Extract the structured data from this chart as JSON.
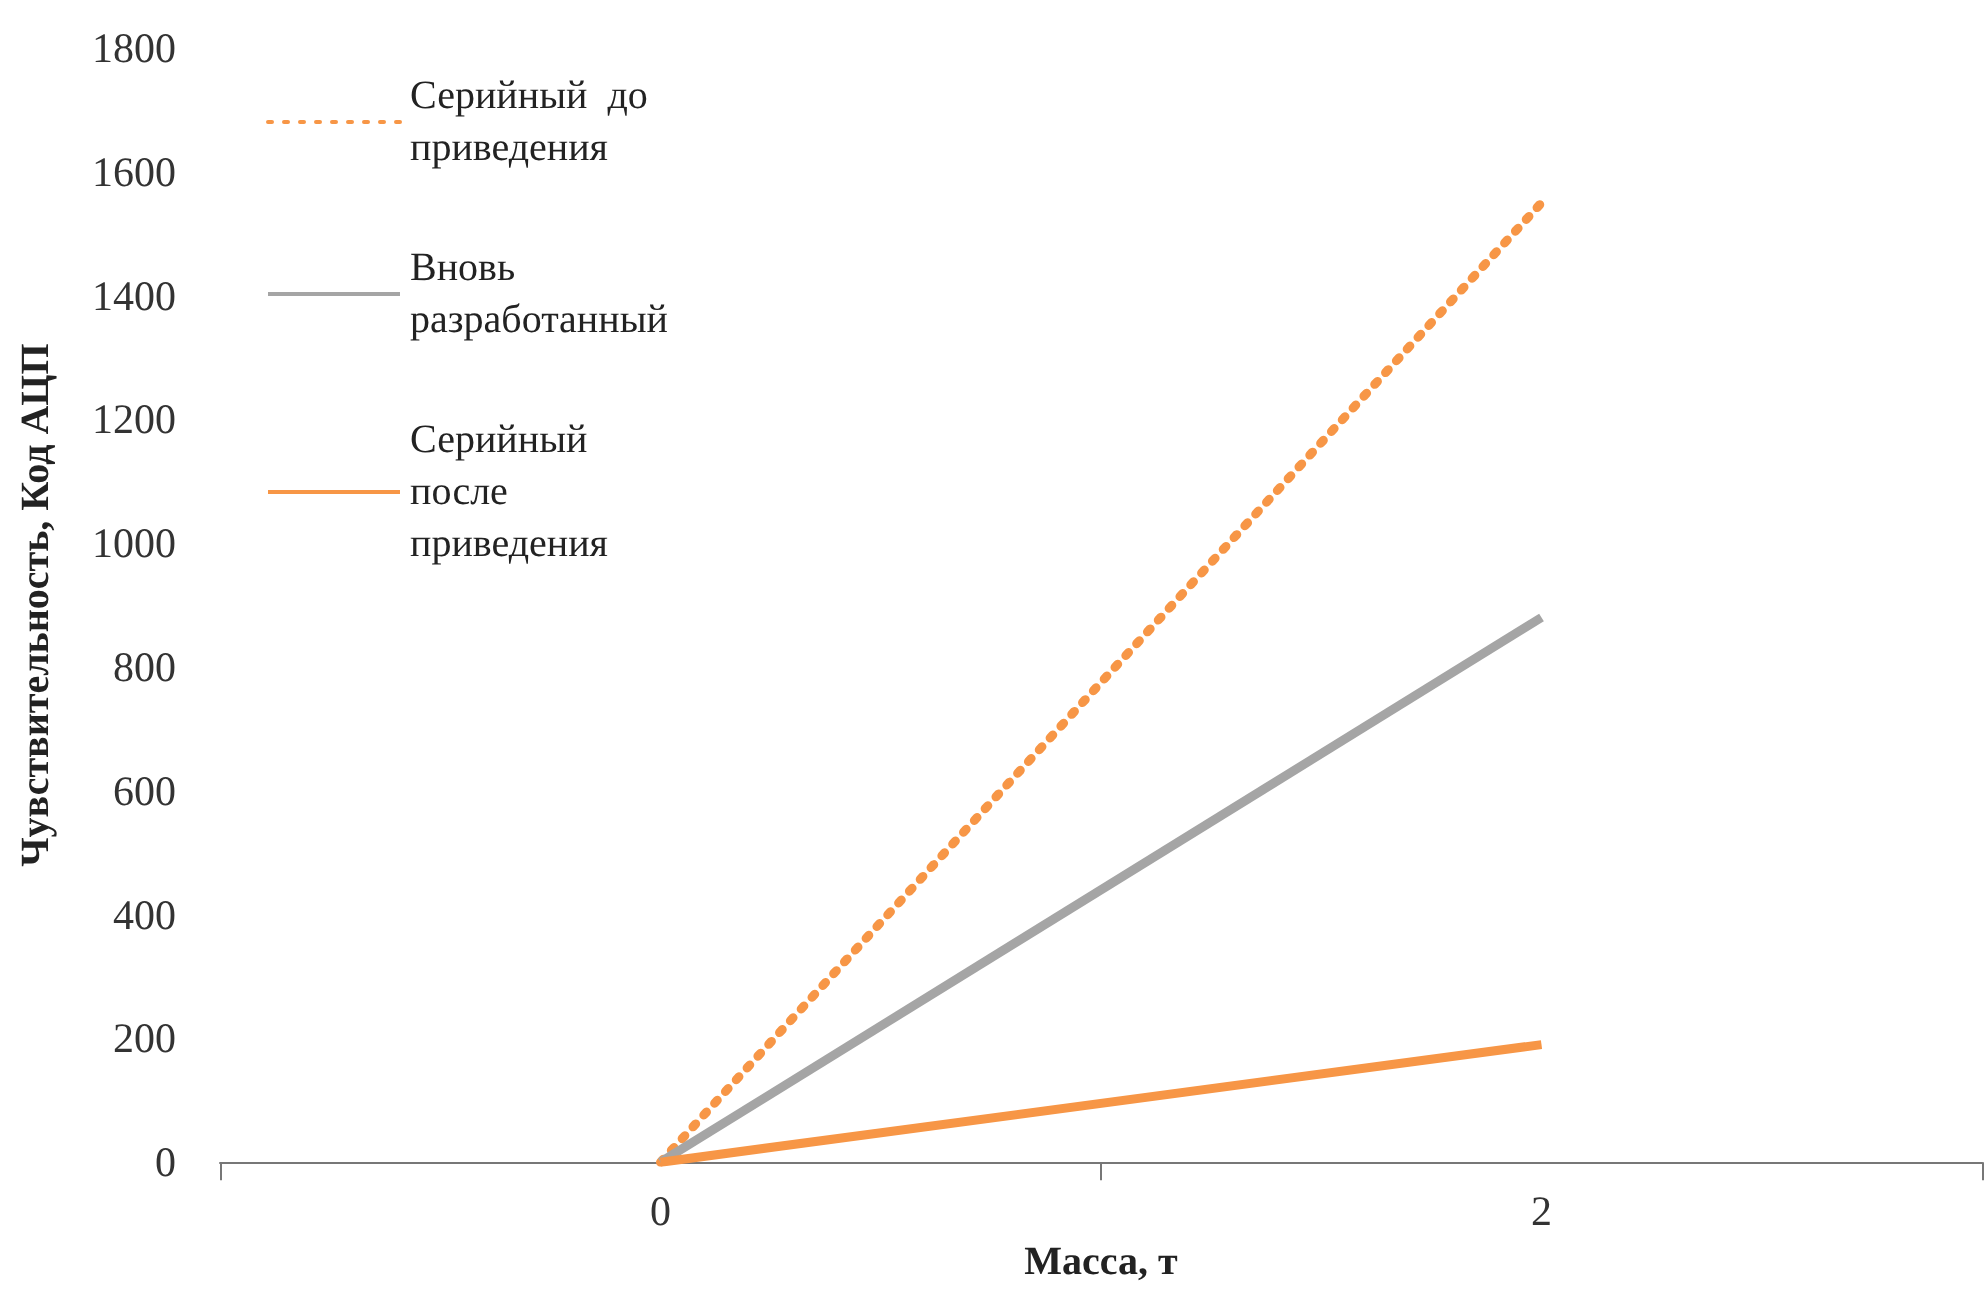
{
  "chart_data": {
    "type": "line",
    "xlabel": "Масса, т",
    "ylabel": "Чувствительность, Код АЦП",
    "x": [
      0,
      2
    ],
    "xlim": [
      -1,
      3
    ],
    "xticks": [
      {
        "value": -1,
        "label": null
      },
      0,
      {
        "value": 1,
        "label": null
      },
      2,
      {
        "value": 3,
        "label": null
      }
    ],
    "series": [
      {
        "name": "Серийный  до приведения",
        "color": "#f79646",
        "line_style": "dotted",
        "values": [
          0,
          1550
        ]
      },
      {
        "name": "Вновь разработанный",
        "color": "#a5a5a5",
        "line_style": "solid",
        "values": [
          0,
          880
        ]
      },
      {
        "name": "Серийный  после приведения",
        "color": "#f79646",
        "line_style": "solid",
        "values": [
          0,
          190
        ]
      }
    ],
    "ylim": [
      0,
      1800
    ],
    "yticks": [
      0,
      200,
      400,
      600,
      800,
      1000,
      1200,
      1400,
      1600,
      1800
    ],
    "grid": false,
    "legend": "top left",
    "marker": "none"
  }
}
